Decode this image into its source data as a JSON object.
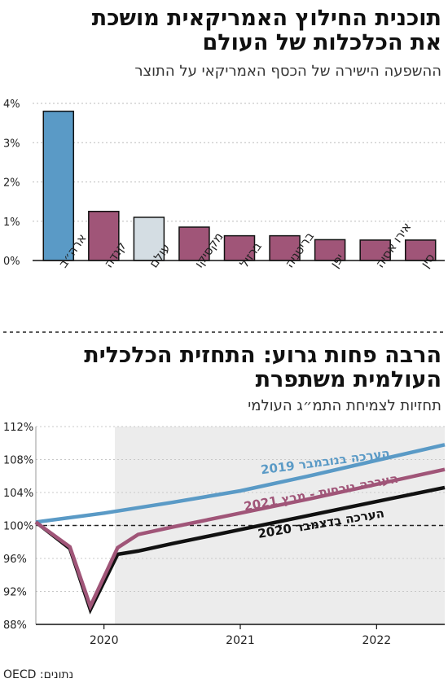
{
  "top": {
    "title_line1": "תוכנית החילוץ האמריקאית מושכת",
    "title_line2": "את הכלכלות של העולם",
    "subtitle": "ההשפעה הישירה של הכסף האמריקאי על התוצר"
  },
  "bottom": {
    "title_line1": "הרבה פחות גרוע: התחזית הכלכלית",
    "title_line2": "העולמית משתפרת",
    "subtitle": "תחזיות לצמיחת התמ״ג העולמי"
  },
  "source": "נתונים: OECD",
  "colors": {
    "us": "#5a9ac6",
    "world": "#d4dde3",
    "other": "#a05578",
    "nov": "#5a9ac6",
    "mar": "#a05578",
    "dec": "#111111",
    "shade": "#ececec"
  },
  "chart_data": [
    {
      "type": "bar",
      "categories": [
        "ארה״ב",
        "קנדה",
        "עולם",
        "מקסיקו",
        "ברזיל",
        "בריטניה",
        "יפן",
        "אירו אסיה",
        "סין"
      ],
      "values": [
        3.8,
        1.25,
        1.1,
        0.85,
        0.63,
        0.63,
        0.53,
        0.52,
        0.52
      ],
      "ylim": [
        0,
        4
      ],
      "yticks": [
        "0%",
        "1%",
        "2%",
        "3%",
        "4%"
      ],
      "ytick_values": [
        0,
        1,
        2,
        3,
        4
      ],
      "grid": true
    },
    {
      "type": "line",
      "x": [
        2019.5,
        2019.75,
        2019.9,
        2020.0,
        2020.25,
        2020.5,
        2021.0,
        2021.5,
        2022.0,
        2022.5
      ],
      "xlim": [
        2019.5,
        2022.5
      ],
      "xticks": [
        "2020",
        "2021",
        "2022"
      ],
      "xtick_values": [
        2020.0,
        2021.0,
        2022.0
      ],
      "ylim": [
        88,
        112
      ],
      "yticks": [
        "88%",
        "92%",
        "96%",
        "100%",
        "104%",
        "108%",
        "112%"
      ],
      "ytick_values": [
        88,
        92,
        96,
        100,
        104,
        108,
        112
      ],
      "reference_line": 100,
      "shaded_from": 2020.08,
      "series": [
        {
          "name": "הערכה בנובמבר 2019",
          "x": [
            2019.5,
            2020.0,
            2020.5,
            2021.0,
            2021.5,
            2022.0,
            2022.5
          ],
          "values": [
            100.4,
            101.5,
            102.8,
            104.2,
            106.0,
            107.9,
            109.8
          ]
        },
        {
          "name": "הערכה נוכחית - מרץ 2021",
          "x": [
            2019.5,
            2019.75,
            2019.9,
            2020.1,
            2020.25,
            2020.5,
            2021.0,
            2021.5,
            2022.0,
            2022.5
          ],
          "values": [
            100.4,
            97.4,
            90.2,
            97.3,
            98.9,
            99.8,
            101.5,
            103.2,
            105.0,
            106.8
          ]
        },
        {
          "name": "הערכה בדצמבר 2020",
          "x": [
            2019.5,
            2019.75,
            2019.9,
            2020.1,
            2020.25,
            2020.5,
            2021.0,
            2021.5,
            2022.0,
            2022.5
          ],
          "values": [
            100.4,
            97.2,
            89.8,
            96.5,
            96.9,
            97.8,
            99.5,
            101.2,
            102.9,
            104.6
          ]
        }
      ]
    }
  ]
}
